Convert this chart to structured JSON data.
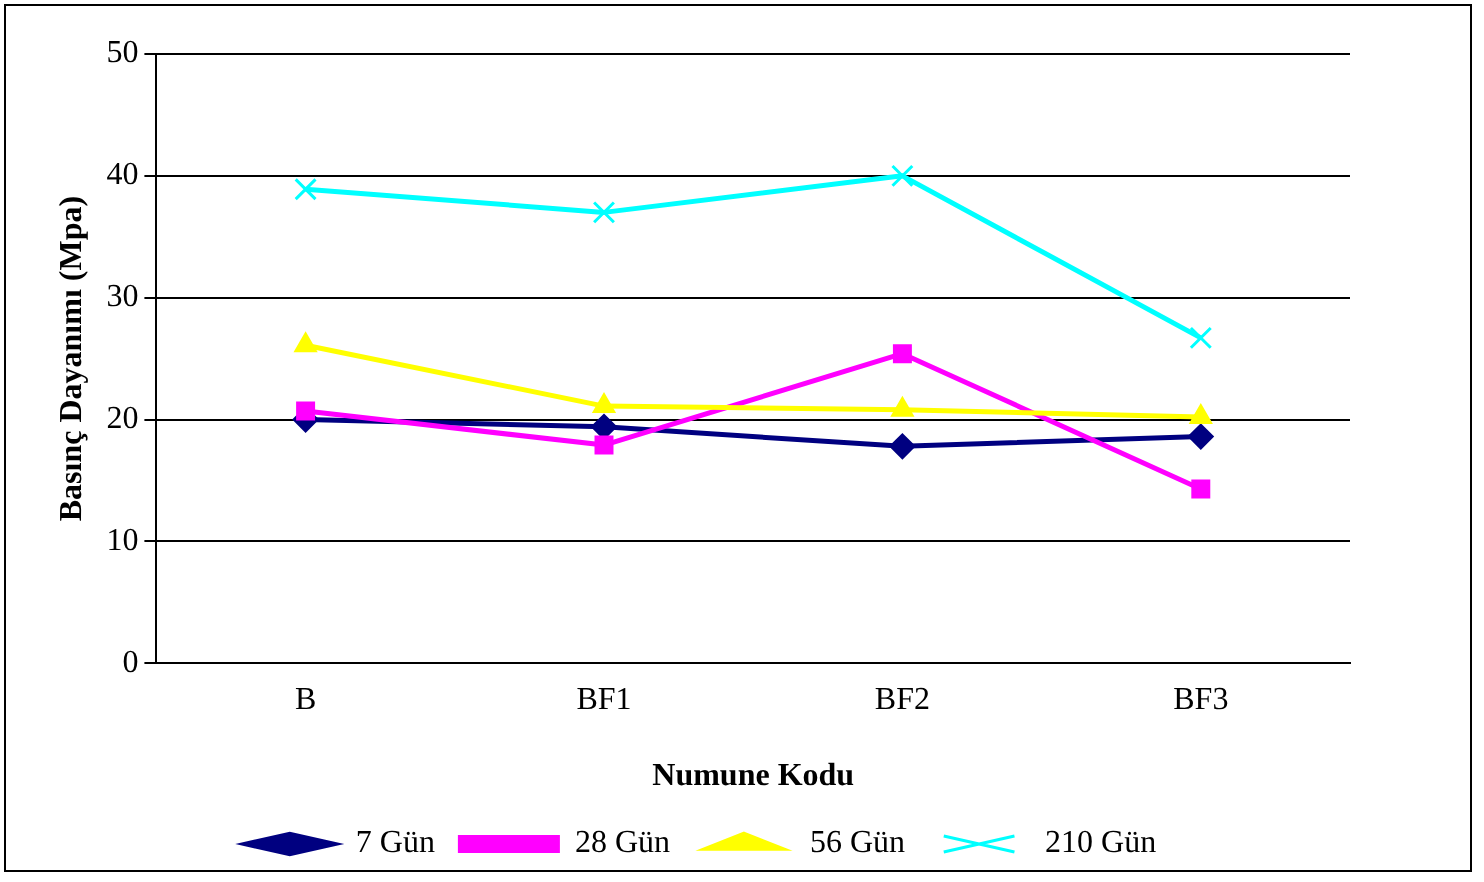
{
  "chart_data": {
    "type": "line",
    "xlabel": "Numune Kodu",
    "ylabel": "Basınç Dayanımı (Mpa)",
    "categories": [
      "B",
      "BF1",
      "BF2",
      "BF3"
    ],
    "series": [
      {
        "name": "7 Gün",
        "color": "#000080",
        "marker": "diamond",
        "values": [
          20,
          19.4,
          17.8,
          18.6
        ]
      },
      {
        "name": "28 Gün",
        "color": "#ff00ff",
        "marker": "square",
        "values": [
          20.7,
          17.9,
          25.4,
          14.3
        ]
      },
      {
        "name": "56 Gün",
        "color": "#ffff00",
        "marker": "triangle",
        "values": [
          26.1,
          21.1,
          20.8,
          20.2
        ]
      },
      {
        "name": "210 Gün",
        "color": "#00ffff",
        "marker": "cross",
        "values": [
          38.9,
          37.0,
          40,
          26.7
        ]
      }
    ],
    "ylim": [
      0,
      50
    ],
    "yticks": [
      0,
      10,
      20,
      30,
      40,
      50
    ],
    "grid": "y",
    "legend": "bottom"
  }
}
